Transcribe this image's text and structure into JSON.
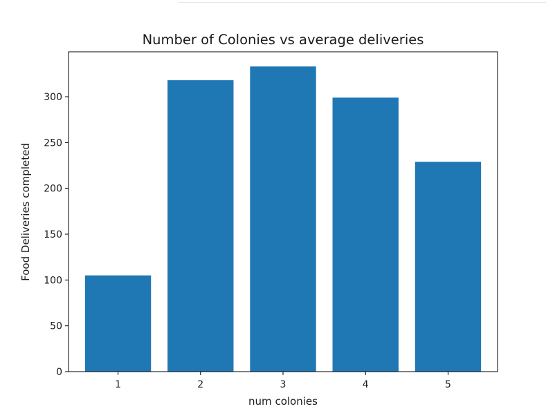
{
  "chart_data": {
    "type": "bar",
    "title": "Number of Colonies vs average deliveries",
    "xlabel": "num colonies",
    "ylabel": "Food Deliveries completed",
    "categories": [
      "1",
      "2",
      "3",
      "4",
      "5"
    ],
    "values": [
      105,
      318,
      333,
      299,
      229
    ],
    "ylim": [
      0,
      349
    ],
    "yticks": [
      "0",
      "50",
      "100",
      "150",
      "200",
      "250",
      "300"
    ],
    "grid": false,
    "bar_color": "#1f77b4"
  }
}
